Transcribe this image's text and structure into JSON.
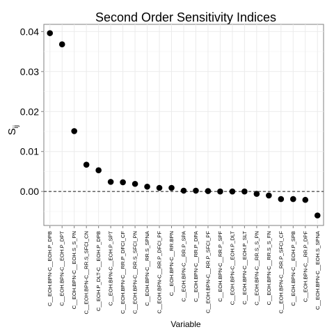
{
  "chart_data": {
    "type": "scatter",
    "title": "Second Order Sensitivity Indices",
    "xlabel": "Variable",
    "ylabel": "S",
    "ylabel_subscript": "ij",
    "ylim": [
      -0.0085,
      0.0418
    ],
    "yticks": [
      0.0,
      0.01,
      0.02,
      0.03,
      0.04
    ],
    "ytick_labels": [
      "0.00",
      "0.01",
      "0.02",
      "0.03",
      "0.04"
    ],
    "reference_line": 0,
    "grid": true,
    "categories": [
      "C__EOH.BPN-C__EOH.P_DPB",
      "C__EOH.BPN-C__EOH.P_DPT",
      "C__EOH.BPN-C__EOH.S_S_PN",
      "C__EOH.BPN-C__RR.S_SFCI_CN",
      "C__EOH.P_DLT-C__EOH.P_DPB",
      "C__EOH.BPN-C__EOH.P_SPT",
      "C__EOH.BPN-C__RR.P_DFCI_CF",
      "C__EOH.BPN-C__RR.S_SFCI_PN",
      "C__EOH.BPN-C__RR.S_SPNA",
      "C__EOH.BPN-C__RR.P_DFCI_PF",
      "C__EOH.BPN-C__RR.BPN",
      "C__EOH.BPN-C__RR.P_SPA",
      "C__EOH.BPN-C__RR.P_DPA",
      "C__EOH.BPN-C__RR.P_SFCI_PF",
      "C__EOH.BPN-C__RR.P_SPF",
      "C__EOH.BPN-C__EOH.P_DLT",
      "C__EOH.BPN-C__EOH.P_SLT",
      "C__EOH.BPN-C__RR.S_S_PN",
      "C__EOH.BPN-C__RR.S_S_FN",
      "C__EOH.BPN-C__RR.P_SFCI_CF",
      "C__EOH.BPN-C__EOH.P_SPB",
      "C__EOH.BPN-C__RR.P_DPF",
      "C__EOH.BPN-C__EOH.S_SPNA"
    ],
    "values": [
      0.0396,
      0.0368,
      0.0151,
      0.0067,
      0.0053,
      0.0024,
      0.0023,
      0.0019,
      0.0012,
      0.0009,
      0.0009,
      0.0002,
      0.0002,
      0.0001,
      0.0,
      0.0,
      0.0,
      -0.0006,
      -0.001,
      -0.0019,
      -0.0019,
      -0.0021,
      -0.006
    ]
  }
}
